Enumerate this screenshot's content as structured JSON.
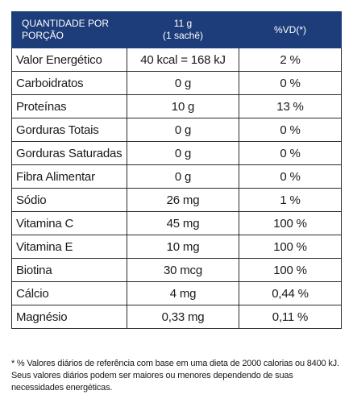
{
  "header": {
    "col1": "QUANTIDADE POR PORÇÃO",
    "col2_line1": "11 g",
    "col2_line2": "(1 sachê)",
    "col3": "%VD(*)"
  },
  "rows": [
    {
      "name": "Valor Energético",
      "amount": "40 kcal = 168 kJ",
      "vd": "2 %"
    },
    {
      "name": "Carboidratos",
      "amount": "0 g",
      "vd": "0 %"
    },
    {
      "name": "Proteínas",
      "amount": "10 g",
      "vd": "13 %"
    },
    {
      "name": "Gorduras Totais",
      "amount": "0 g",
      "vd": "0 %"
    },
    {
      "name": "Gorduras Saturadas",
      "amount": "0 g",
      "vd": "0 %"
    },
    {
      "name": "Fibra Alimentar",
      "amount": "0 g",
      "vd": "0 %"
    },
    {
      "name": "Sódio",
      "amount": "26 mg",
      "vd": "1 %"
    },
    {
      "name": "Vitamina C",
      "amount": "45 mg",
      "vd": "100 %"
    },
    {
      "name": "Vitamina E",
      "amount": "10 mg",
      "vd": "100 %"
    },
    {
      "name": "Biotina",
      "amount": "30 mcg",
      "vd": "100 %"
    },
    {
      "name": "Cálcio",
      "amount": "4 mg",
      "vd": "0,44 %"
    },
    {
      "name": "Magnésio",
      "amount": "0,33 mg",
      "vd": "0,11 %"
    }
  ],
  "footnote": "* % Valores diários de referência com base em uma dieta de 2000 calorias ou 8400 kJ. Seus valores diários podem ser maiores ou menores dependendo de suas necessidades energéticas.",
  "colors": {
    "header_bg": "#1d3c7a",
    "header_text": "#ffffff",
    "border": "#2a2a2a"
  }
}
